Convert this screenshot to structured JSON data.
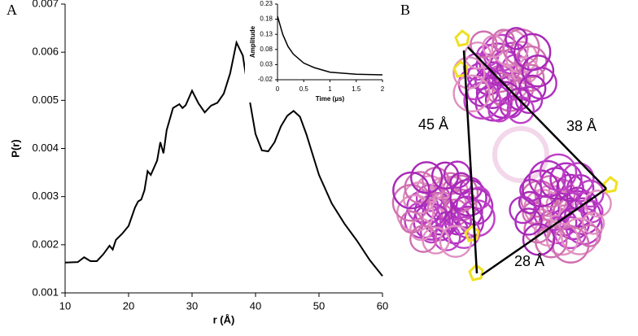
{
  "panel_labels": [
    "A",
    "B"
  ],
  "structure": {
    "distances": [
      "45 Å",
      "38 Å",
      "28 Å"
    ]
  },
  "chart_data": [
    {
      "type": "line",
      "xlabel": "r (Å)",
      "ylabel": "P(r)",
      "color": "#000000",
      "x": [
        10,
        12,
        13,
        14,
        15,
        16,
        17,
        17.5,
        18,
        19,
        20,
        21,
        21.5,
        22,
        22.5,
        23,
        23.5,
        24.5,
        25,
        25.5,
        26,
        27,
        28,
        28.5,
        29,
        30,
        31,
        32,
        33,
        34,
        35,
        36,
        37,
        38,
        39,
        40,
        41,
        42,
        43,
        44,
        45,
        46,
        47,
        48,
        50,
        52,
        54,
        56,
        58,
        60
      ],
      "values": [
        0.00163,
        0.00164,
        0.00174,
        0.00166,
        0.00166,
        0.0018,
        0.00198,
        0.0019,
        0.0021,
        0.00223,
        0.00239,
        0.00277,
        0.0029,
        0.00294,
        0.00313,
        0.00353,
        0.00345,
        0.00375,
        0.00413,
        0.0039,
        0.00438,
        0.00484,
        0.00492,
        0.00484,
        0.0049,
        0.0052,
        0.00494,
        0.00475,
        0.00489,
        0.00495,
        0.00514,
        0.00556,
        0.0062,
        0.00593,
        0.00506,
        0.0043,
        0.00396,
        0.00394,
        0.00413,
        0.00446,
        0.00468,
        0.00478,
        0.00466,
        0.0043,
        0.00345,
        0.00286,
        0.00244,
        0.00208,
        0.00168,
        0.00135
      ],
      "xlim": [
        10,
        60
      ],
      "xticks": [
        10,
        20,
        30,
        40,
        50,
        60
      ],
      "ylim": [
        0.001,
        0.007
      ],
      "yticks": [
        0.001,
        0.002,
        0.003,
        0.004,
        0.005,
        0.006,
        0.007
      ]
    },
    {
      "type": "line",
      "xlabel": "Time (μs)",
      "ylabel": "Amplitude",
      "color": "#000000",
      "x": [
        0,
        0.05,
        0.1,
        0.2,
        0.3,
        0.5,
        0.7,
        1,
        1.5,
        2
      ],
      "values": [
        0.19,
        0.16,
        0.13,
        0.09,
        0.065,
        0.035,
        0.02,
        0.005,
        -0.002,
        -0.004
      ],
      "xlim": [
        0,
        2
      ],
      "xticks": [
        0,
        0.5,
        1,
        1.5,
        2
      ],
      "ylim": [
        -0.02,
        0.23
      ],
      "yticks": [
        -0.02,
        0.03,
        0.08,
        0.13,
        0.18,
        0.23
      ]
    }
  ]
}
